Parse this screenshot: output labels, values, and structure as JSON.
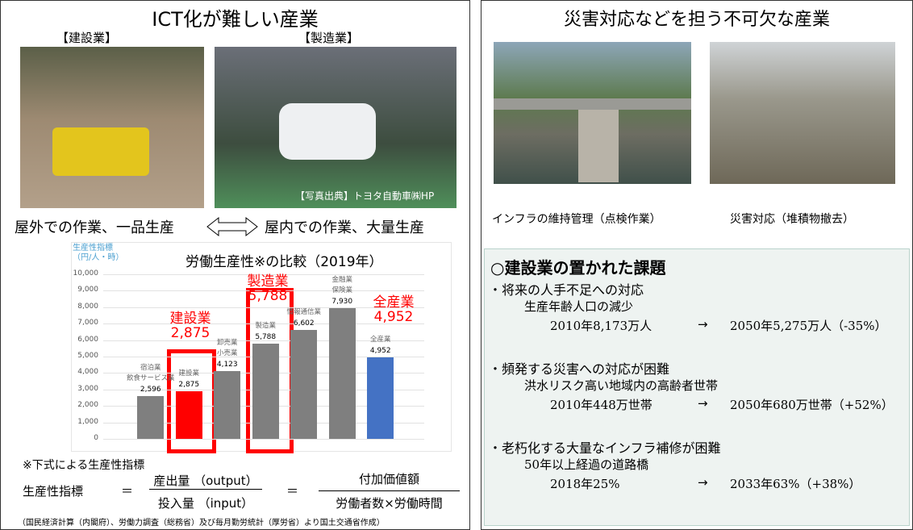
{
  "left": {
    "title": "ICT化が難しい産業",
    "photo_labels": [
      "【建設業】",
      "【製造業】"
    ],
    "photo_credit": "【写真出典】トヨタ自動車㈱HP",
    "contrast": {
      "left": "屋外での作業、一品生産",
      "right": "屋内での作業、大量生産"
    },
    "chart_data": {
      "type": "bar",
      "title": "労働生産性※の比較（2019年）",
      "y_label": "生産性指標\n（円/人・時）",
      "categories": [
        "宿泊業\n飲食サービス業",
        "建設業",
        "卸売業\n小売業",
        "製造業",
        "情報通信業",
        "金融業\n保険業",
        "全産業"
      ],
      "values": [
        2596,
        2875,
        4123,
        5788,
        6602,
        7930,
        4952
      ],
      "value_labels": [
        "2,596",
        "2,875",
        "4,123",
        "5,788",
        "6,602",
        "7,930",
        "4,952"
      ],
      "colors": [
        "#7f7f7f",
        "#ff0000",
        "#7f7f7f",
        "#7f7f7f",
        "#7f7f7f",
        "#7f7f7f",
        "#4472c4"
      ],
      "ylim": [
        0,
        10000
      ],
      "yticks": [
        0,
        {
          "value": 1000,
          "label": "1,000"
        },
        {
          "value": 2000,
          "label": "2,000"
        },
        {
          "value": 3000,
          "label": "3,000"
        },
        {
          "value": 4000,
          "label": "4,000"
        },
        {
          "value": 5000,
          "label": "5,000"
        },
        {
          "value": 6000,
          "label": "6,000"
        },
        {
          "value": 7000,
          "label": "7,000"
        },
        {
          "value": 8000,
          "label": "8,000"
        },
        {
          "value": 9000,
          "label": "9,000"
        },
        {
          "value": 10000,
          "label": "10,000"
        }
      ],
      "grid": true,
      "annotations": [
        {
          "label": "建設業",
          "value_label": "2,875"
        },
        {
          "label": "製造業",
          "value_label": "5,788"
        },
        {
          "label": "全産業",
          "value_label": "4,952"
        }
      ]
    },
    "note": "※下式による生産性指標",
    "formula": {
      "lhs": "生産性指標",
      "eq": "＝",
      "num1": "産出量 （output）",
      "den1": "投入量 （input）",
      "num2": "付加価値額",
      "den2": "労働者数×労働時間"
    },
    "source": "（国民経済計算（内閣府）、労働力調査（総務省）及び毎月勤労統計（厚労省）より国土交通省作成）"
  },
  "right": {
    "title": "災害対応などを担う不可欠な産業",
    "captions": [
      "インフラの維持管理（点検作業）",
      "災害対応（堆積物撤去）"
    ],
    "issues": {
      "heading": "○建設業の置かれた課題",
      "items": [
        {
          "title": "・将来の人手不足への対応",
          "sub": "生産年齢人口の減少",
          "from": "2010年8,173万人",
          "arrow": "→",
          "to": "2050年5,275万人（-35%）"
        },
        {
          "title": "・頻発する災害への対応が困難",
          "sub": "洪水リスク高い地域内の高齢者世帯",
          "from": "2010年448万世帯",
          "arrow": "→",
          "to": "2050年680万世帯（+52%）"
        },
        {
          "title": "・老朽化する大量なインフラ補修が困難",
          "sub": "50年以上経過の道路橋",
          "from": "2018年25%",
          "arrow": "→",
          "to": "2033年63%（+38%）"
        }
      ]
    }
  }
}
